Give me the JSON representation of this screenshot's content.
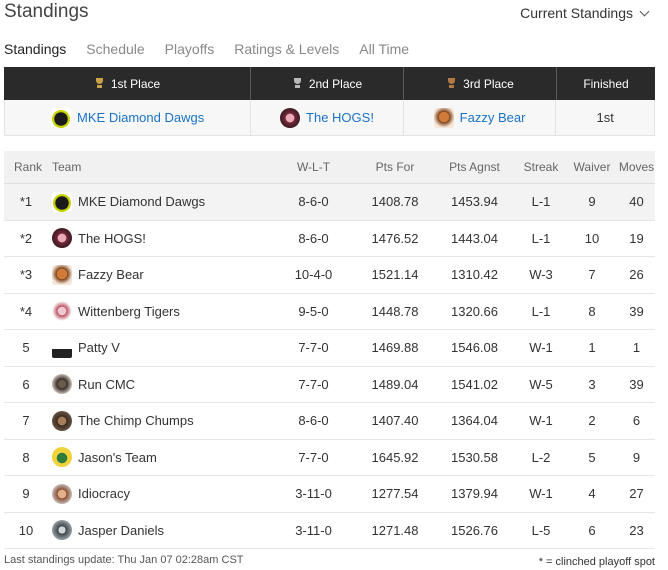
{
  "header": {
    "title": "Standings",
    "dropdown_label": "Current Standings"
  },
  "tabs": [
    {
      "label": "Standings"
    },
    {
      "label": "Schedule"
    },
    {
      "label": "Playoffs"
    },
    {
      "label": "Ratings & Levels"
    },
    {
      "label": "All Time"
    }
  ],
  "podium": {
    "headers": [
      "1st Place",
      "2nd Place",
      "3rd Place",
      "Finished"
    ],
    "first": "MKE Diamond Dawgs",
    "second": "The HOGS!",
    "third": "Fazzy Bear",
    "finished": "1st"
  },
  "table": {
    "columns": [
      "Rank",
      "Team",
      "W-L-T",
      "Pts For",
      "Pts Agnst",
      "Streak",
      "Waiver",
      "Moves"
    ],
    "rows": [
      {
        "rank": "*1",
        "team": "MKE Diamond Dawgs",
        "wlt": "8-6-0",
        "pf": "1408.78",
        "pa": "1453.94",
        "streak": "L-1",
        "waiver": "9",
        "moves": "40"
      },
      {
        "rank": "*2",
        "team": "The HOGS!",
        "wlt": "8-6-0",
        "pf": "1476.52",
        "pa": "1443.04",
        "streak": "L-1",
        "waiver": "10",
        "moves": "19"
      },
      {
        "rank": "*3",
        "team": "Fazzy Bear",
        "wlt": "10-4-0",
        "pf": "1521.14",
        "pa": "1310.42",
        "streak": "W-3",
        "waiver": "7",
        "moves": "26"
      },
      {
        "rank": "*4",
        "team": "Wittenberg Tigers",
        "wlt": "9-5-0",
        "pf": "1448.78",
        "pa": "1320.66",
        "streak": "L-1",
        "waiver": "8",
        "moves": "39"
      },
      {
        "rank": "5",
        "team": "Patty V",
        "wlt": "7-7-0",
        "pf": "1469.88",
        "pa": "1546.08",
        "streak": "W-1",
        "waiver": "1",
        "moves": "1"
      },
      {
        "rank": "6",
        "team": "Run CMC",
        "wlt": "7-7-0",
        "pf": "1489.04",
        "pa": "1541.02",
        "streak": "W-5",
        "waiver": "3",
        "moves": "39"
      },
      {
        "rank": "7",
        "team": "The Chimp Chumps",
        "wlt": "8-6-0",
        "pf": "1407.40",
        "pa": "1364.04",
        "streak": "W-1",
        "waiver": "2",
        "moves": "6"
      },
      {
        "rank": "8",
        "team": "Jason's Team",
        "wlt": "7-7-0",
        "pf": "1645.92",
        "pa": "1530.58",
        "streak": "L-2",
        "waiver": "5",
        "moves": "9"
      },
      {
        "rank": "9",
        "team": "Idiocracy",
        "wlt": "3-11-0",
        "pf": "1277.54",
        "pa": "1379.94",
        "streak": "W-1",
        "waiver": "4",
        "moves": "27"
      },
      {
        "rank": "10",
        "team": "Jasper Daniels",
        "wlt": "3-11-0",
        "pf": "1271.48",
        "pa": "1526.76",
        "streak": "L-5",
        "waiver": "6",
        "moves": "23"
      }
    ]
  },
  "footer": {
    "last_update": "Last standings update: Thu Jan 07 02:28am CST",
    "legend": "* = clinched playoff spot"
  }
}
